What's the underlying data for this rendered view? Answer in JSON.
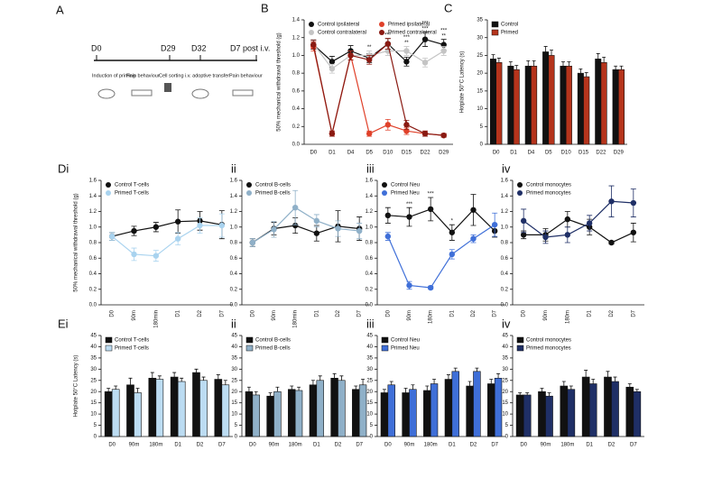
{
  "panel_a": {
    "label": "A",
    "ticks": [
      "D0",
      "D29",
      "D32",
      "D7 post i.v."
    ],
    "steps": [
      "Induction of priming",
      "Pain behaviour",
      "Cell sorting",
      "i.v. adoptive transfer",
      "Pain behaviour"
    ]
  },
  "chart_data": [
    {
      "type": "line",
      "panel": "B",
      "y_label": "50% mechanical withdrawal threshold (g)",
      "categories": [
        "D0",
        "D1",
        "D4",
        "D5",
        "D10",
        "D15",
        "D22",
        "D29"
      ],
      "ylim": [
        0,
        1.4
      ],
      "yticks": [
        {
          "value": 0,
          "label": "0.0"
        },
        0.2,
        0.4,
        0.6,
        0.8,
        {
          "value": 1,
          "label": "1.0"
        },
        1.2,
        1.4
      ],
      "legend": "upper left",
      "legend_columns": 2,
      "series": [
        {
          "name": "Control ipsilateral",
          "color": "#111111",
          "values": [
            1.12,
            0.93,
            1.05,
            0.97,
            1.13,
            0.93,
            1.18,
            1.12
          ],
          "errors": [
            0.05,
            0.06,
            0.06,
            0.05,
            0.06,
            0.05,
            0.08,
            0.06
          ]
        },
        {
          "name": "Control contralateral",
          "color": "#c4c4c4",
          "values": [
            1.13,
            0.85,
            1.0,
            1.0,
            1.05,
            1.05,
            0.92,
            1.05
          ],
          "errors": [
            0.05,
            0.05,
            0.05,
            0.05,
            0.05,
            0.05,
            0.05,
            0.05
          ]
        },
        {
          "name": "Primed ipsilateral",
          "color": "#e0412a",
          "values": [
            1.1,
            0.12,
            1.0,
            0.12,
            0.22,
            0.15,
            0.12,
            0.1
          ],
          "errors": [
            0.05,
            0.03,
            0.05,
            0.03,
            0.06,
            0.04,
            0.03,
            0.02
          ]
        },
        {
          "name": "Primed contralateral",
          "color": "#8a1a12",
          "values": [
            1.12,
            0.12,
            1.0,
            0.95,
            1.13,
            0.22,
            0.12,
            0.1
          ],
          "errors": [
            0.05,
            0.03,
            0.05,
            0.05,
            0.06,
            0.05,
            0.03,
            0.02
          ]
        }
      ],
      "annotations": [
        {
          "category": "D5",
          "text": "**"
        },
        {
          "category": "D10",
          "text": "***"
        },
        {
          "category": "D15",
          "text": "**"
        },
        {
          "category": "D15",
          "text": "***"
        },
        {
          "category": "D22",
          "text": "***"
        },
        {
          "category": "D22",
          "text": "***"
        },
        {
          "category": "D29",
          "text": "**"
        },
        {
          "category": "D29",
          "text": "***"
        }
      ]
    },
    {
      "type": "bar",
      "panel": "C",
      "y_label": "Hotplate 50°C Latency (s)",
      "categories": [
        "D0",
        "D1",
        "D4",
        "D5",
        "D10",
        "D15",
        "D22",
        "D29"
      ],
      "ylim": [
        0,
        35
      ],
      "yticks": [
        0,
        5,
        10,
        15,
        20,
        25,
        30,
        35
      ],
      "legend": "upper left",
      "legend_columns": 1,
      "series": [
        {
          "name": "Control",
          "color": "#111111",
          "values": [
            24,
            22,
            22,
            26,
            22,
            20,
            24,
            21
          ],
          "errors": [
            1.2,
            1.2,
            1.5,
            1.5,
            1.2,
            1.2,
            1.5,
            1
          ]
        },
        {
          "name": "Primed",
          "color": "#b5341c",
          "values": [
            23,
            21,
            22,
            25,
            22,
            19,
            23,
            21
          ],
          "errors": [
            1.2,
            1.2,
            1.5,
            1.5,
            1.2,
            1.2,
            1.5,
            1
          ]
        }
      ]
    },
    {
      "type": "line",
      "panel": "Di",
      "y_label": "50% mechanical withdrawal threshold (g)",
      "categories": [
        "D0",
        "90m",
        "180min",
        "D1",
        "D2",
        "D7"
      ],
      "xtick_rotation": 90,
      "ylim": [
        0,
        1.6
      ],
      "yticks": [
        {
          "value": 0,
          "label": "0.0"
        },
        0.2,
        0.4,
        0.6,
        0.8,
        {
          "value": 1,
          "label": "1.0"
        },
        1.2,
        1.4,
        1.6
      ],
      "legend": "upper left",
      "legend_columns": 1,
      "series": [
        {
          "name": "Control T-cells",
          "color": "#111111",
          "values": [
            0.88,
            0.95,
            1.0,
            1.07,
            1.08,
            1.03
          ],
          "errors": [
            0.05,
            0.06,
            0.06,
            0.15,
            0.12,
            0.18
          ]
        },
        {
          "name": "Primed T-cells",
          "color": "#a9d3ef",
          "values": [
            0.88,
            0.65,
            0.63,
            0.85,
            1.02,
            1.02
          ],
          "errors": [
            0.05,
            0.08,
            0.07,
            0.08,
            0.1,
            0.15
          ]
        }
      ]
    },
    {
      "type": "line",
      "panel": "ii",
      "categories": [
        "D0",
        "90m",
        "180min",
        "D1",
        "D2",
        "D7"
      ],
      "xtick_rotation": 90,
      "ylim": [
        0,
        1.6
      ],
      "yticks": [
        {
          "value": 0,
          "label": "0.0"
        },
        0.2,
        0.4,
        0.6,
        0.8,
        {
          "value": 1,
          "label": "1.0"
        },
        1.2,
        1.4,
        1.6
      ],
      "legend": "upper left",
      "legend_columns": 1,
      "series": [
        {
          "name": "Control B-cells",
          "color": "#111111",
          "values": [
            0.8,
            0.98,
            1.02,
            0.92,
            1.01,
            0.98
          ],
          "errors": [
            0.05,
            0.08,
            0.1,
            0.1,
            0.2,
            0.15
          ]
        },
        {
          "name": "Primed B-cells",
          "color": "#8fb0c8",
          "values": [
            0.8,
            0.97,
            1.25,
            1.08,
            0.98,
            0.95
          ],
          "errors": [
            0.05,
            0.1,
            0.22,
            0.08,
            0.1,
            0.1
          ]
        }
      ]
    },
    {
      "type": "line",
      "panel": "iii",
      "categories": [
        "D0",
        "90m",
        "180m",
        "D1",
        "D2",
        "D7"
      ],
      "xtick_rotation": 90,
      "ylim": [
        0,
        1.6
      ],
      "yticks": [
        {
          "value": 0,
          "label": "0.0"
        },
        0.2,
        0.4,
        0.6,
        0.8,
        {
          "value": 1,
          "label": "1.0"
        },
        1.2,
        1.4,
        1.6
      ],
      "legend": "upper left",
      "legend_columns": 1,
      "series": [
        {
          "name": "Control Neu",
          "color": "#111111",
          "values": [
            1.15,
            1.13,
            1.23,
            0.93,
            1.22,
            0.95
          ],
          "errors": [
            0.1,
            0.12,
            0.15,
            0.1,
            0.2,
            0.08
          ]
        },
        {
          "name": "Primed Neu",
          "color": "#3f6fd8",
          "values": [
            0.88,
            0.25,
            0.22,
            0.65,
            0.85,
            1.03
          ],
          "errors": [
            0.05,
            0.05,
            0.02,
            0.06,
            0.05,
            0.15
          ]
        }
      ],
      "annotations": [
        {
          "category": "90m",
          "text": "***"
        },
        {
          "category": "180m",
          "text": "***"
        },
        {
          "category": "D1",
          "text": "*"
        }
      ]
    },
    {
      "type": "line",
      "panel": "iv",
      "categories": [
        "D0",
        "90m",
        "180m",
        "D1",
        "D2",
        "D7"
      ],
      "xtick_rotation": 90,
      "ylim": [
        0,
        1.6
      ],
      "yticks": [
        {
          "value": 0,
          "label": "0.0"
        },
        0.2,
        0.4,
        0.6,
        0.8,
        {
          "value": 1,
          "label": "1.0"
        },
        1.2,
        1.4,
        1.6
      ],
      "legend": "upper left",
      "legend_columns": 1,
      "series": [
        {
          "name": "Control monocytes",
          "color": "#111111",
          "values": [
            0.9,
            0.9,
            1.1,
            1.0,
            0.8,
            0.93
          ],
          "errors": [
            0.05,
            0.08,
            0.1,
            0.1,
            0.02,
            0.12
          ]
        },
        {
          "name": "Primed monocytes",
          "color": "#1f2f66",
          "values": [
            1.08,
            0.87,
            0.9,
            1.05,
            1.33,
            1.31
          ],
          "errors": [
            0.15,
            0.08,
            0.1,
            0.1,
            0.2,
            0.18
          ]
        }
      ]
    },
    {
      "type": "bar",
      "panel": "Ei",
      "y_label": "Hotplate 50°C Latency (s)",
      "categories": [
        "D0",
        "90m",
        "180m",
        "D1",
        "D2",
        "D7"
      ],
      "ylim": [
        0,
        45
      ],
      "yticks": [
        0,
        5,
        10,
        15,
        20,
        25,
        30,
        35,
        40,
        45
      ],
      "legend": "upper left",
      "legend_columns": 1,
      "series": [
        {
          "name": "Control T-cells",
          "color": "#111111",
          "values": [
            20,
            23,
            26,
            26.5,
            28.5,
            25.5
          ],
          "errors": [
            1.5,
            3,
            2.5,
            2,
            1.5,
            2
          ]
        },
        {
          "name": "Primed T-cells",
          "color": "#bcdcf2",
          "values": [
            21,
            19.5,
            25.5,
            24.5,
            25,
            23
          ],
          "errors": [
            1.5,
            2,
            1.5,
            1.5,
            1.5,
            2
          ]
        }
      ]
    },
    {
      "type": "bar",
      "panel": "ii",
      "categories": [
        "D0",
        "90m",
        "180m",
        "D1",
        "D2",
        "D7"
      ],
      "ylim": [
        0,
        45
      ],
      "yticks": [
        0,
        5,
        10,
        15,
        20,
        25,
        30,
        35,
        40,
        45
      ],
      "legend": "upper left",
      "legend_columns": 1,
      "series": [
        {
          "name": "Control B-cells",
          "color": "#111111",
          "values": [
            20,
            18,
            21,
            23,
            26,
            21
          ],
          "errors": [
            2,
            1.5,
            1.5,
            2,
            2,
            1.5
          ]
        },
        {
          "name": "Primed B-cells",
          "color": "#8fb0c8",
          "values": [
            18.5,
            20,
            20.5,
            25,
            25,
            23
          ],
          "errors": [
            1.5,
            2,
            1.5,
            2,
            2,
            2.5
          ]
        }
      ]
    },
    {
      "type": "bar",
      "panel": "iii",
      "categories": [
        "D0",
        "90m",
        "180m",
        "D1",
        "D2",
        "D7"
      ],
      "ylim": [
        0,
        45
      ],
      "yticks": [
        0,
        5,
        10,
        15,
        20,
        25,
        30,
        35,
        40,
        45
      ],
      "legend": "upper left",
      "legend_columns": 1,
      "series": [
        {
          "name": "Control Neu",
          "color": "#111111",
          "values": [
            19.5,
            19.5,
            20.5,
            25.5,
            22.5,
            23.5
          ],
          "errors": [
            1.5,
            2,
            2,
            2,
            2,
            2
          ]
        },
        {
          "name": "Primed Neu",
          "color": "#3f6fd8",
          "values": [
            23,
            21,
            23.5,
            29,
            29,
            26
          ],
          "errors": [
            1.5,
            2,
            2,
            1.5,
            1.5,
            2
          ]
        }
      ]
    },
    {
      "type": "bar",
      "panel": "iv",
      "categories": [
        "D0",
        "90m",
        "180m",
        "D1",
        "D2",
        "D7"
      ],
      "ylim": [
        0,
        45
      ],
      "yticks": [
        0,
        5,
        10,
        15,
        20,
        25,
        30,
        35,
        40,
        45
      ],
      "legend": "upper left",
      "legend_columns": 1,
      "series": [
        {
          "name": "Control monocytes",
          "color": "#111111",
          "values": [
            18.5,
            20,
            22.5,
            26.5,
            26.5,
            22
          ],
          "errors": [
            1,
            1.5,
            2,
            3,
            2.5,
            1.5
          ]
        },
        {
          "name": "Primed monocytes",
          "color": "#1f2f66",
          "values": [
            18.5,
            18,
            21,
            23.5,
            24.5,
            20
          ],
          "errors": [
            1,
            1.5,
            1.5,
            2,
            2,
            1
          ]
        }
      ]
    }
  ]
}
